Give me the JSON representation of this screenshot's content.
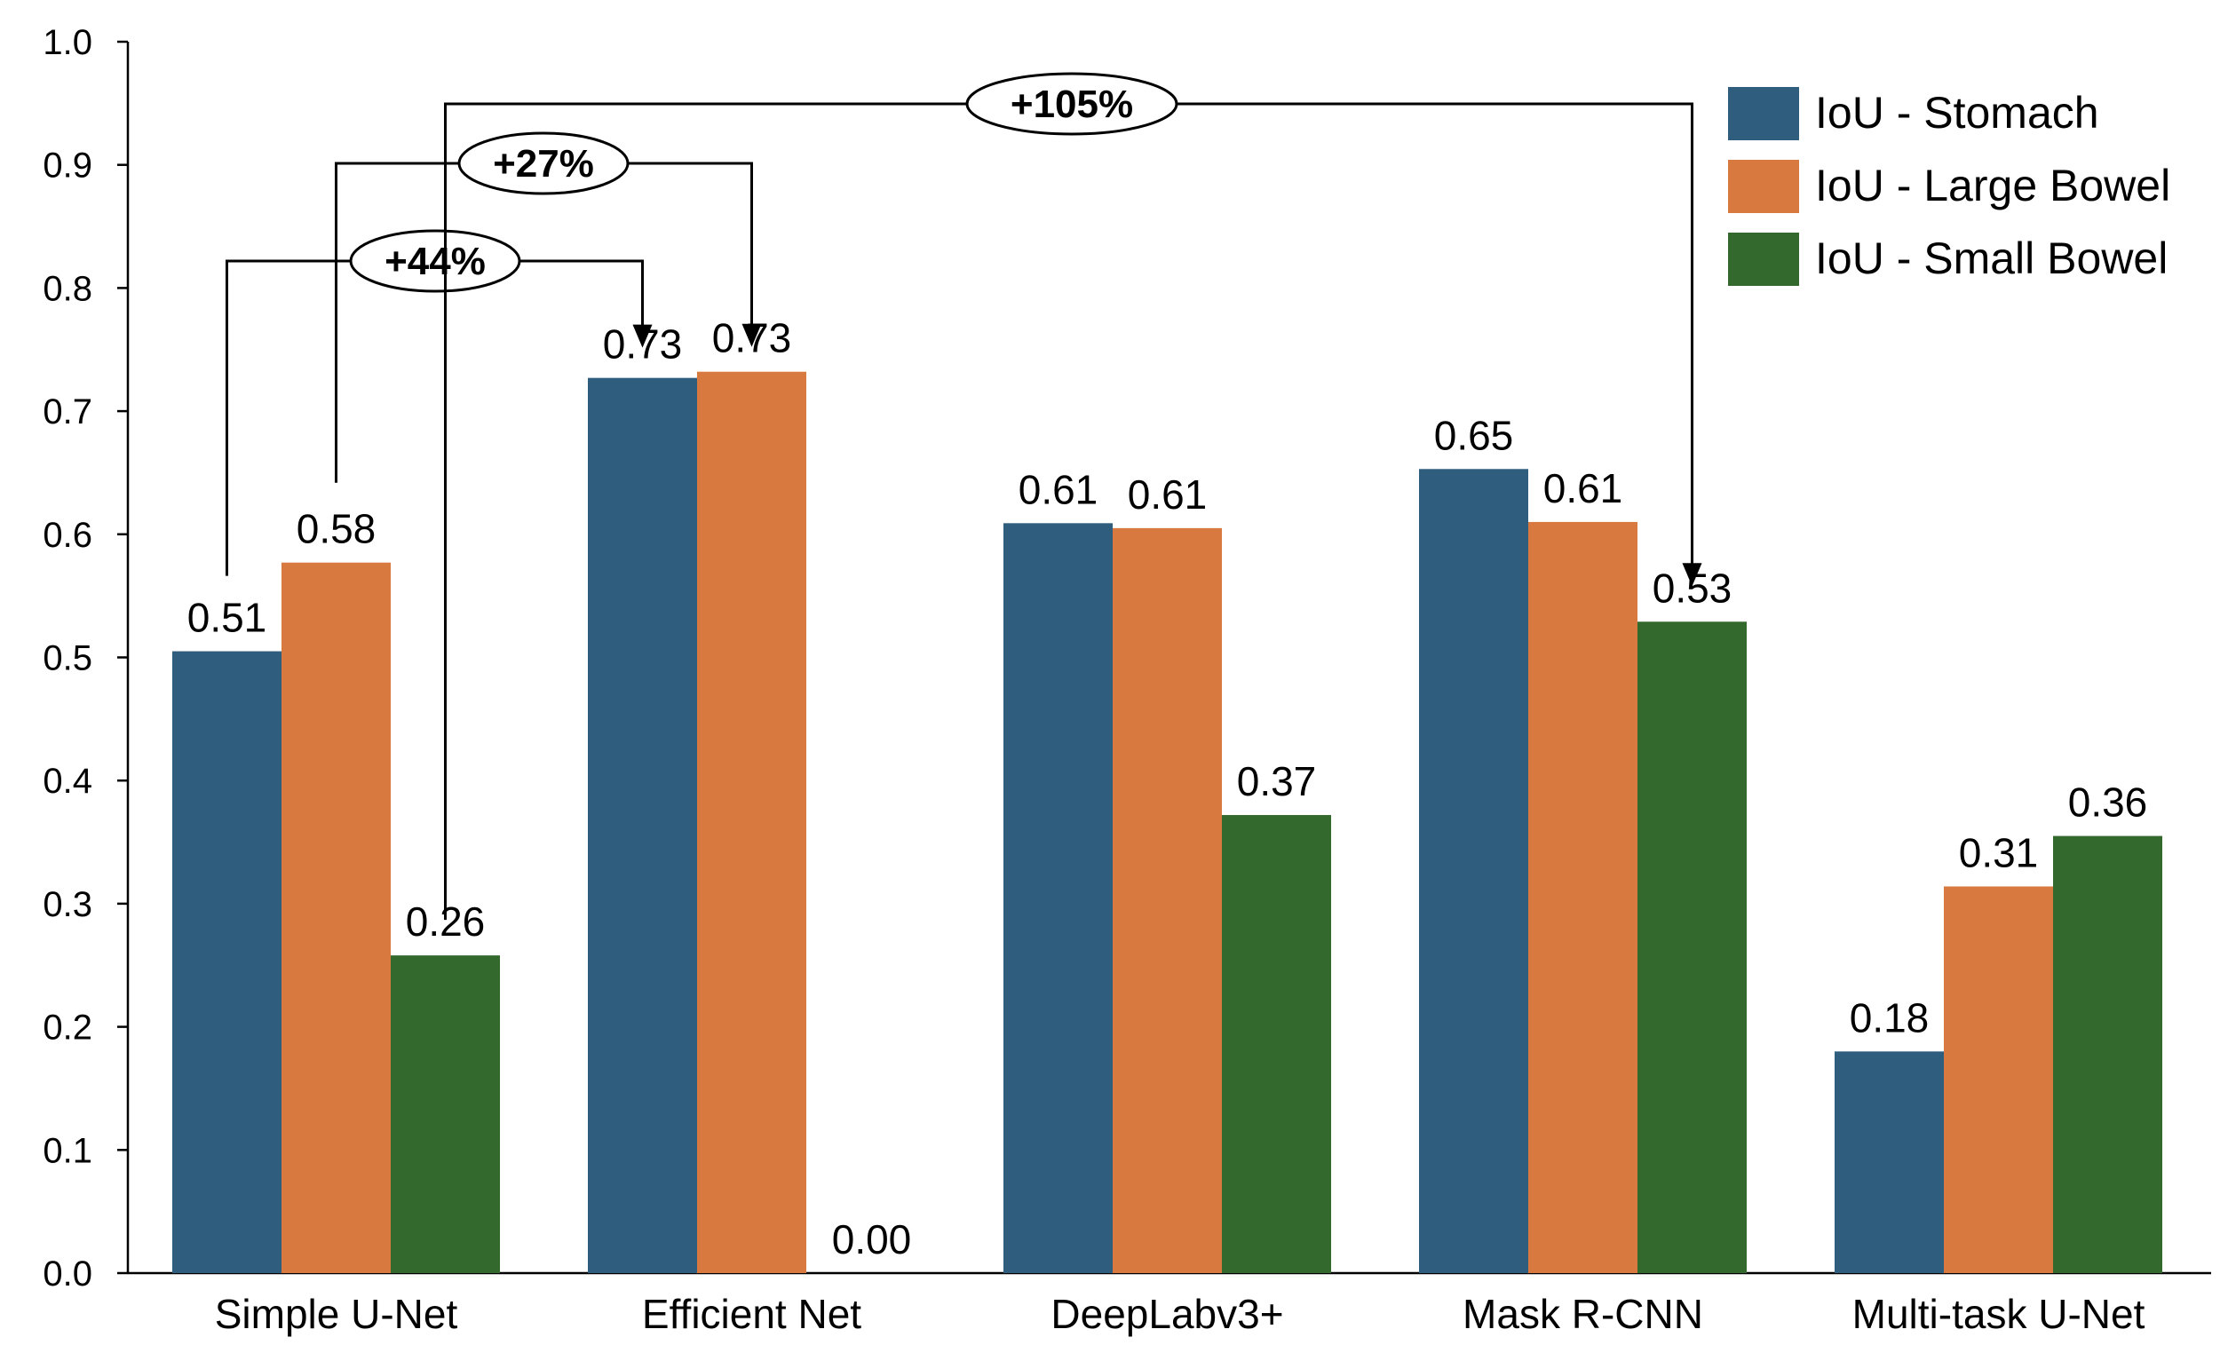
{
  "chart_data": {
    "type": "bar",
    "title": "",
    "xlabel": "",
    "ylabel": "",
    "ylim": [
      0,
      1.0
    ],
    "yticks": [
      "0.0",
      "0.1",
      "0.2",
      "0.3",
      "0.4",
      "0.5",
      "0.6",
      "0.7",
      "0.8",
      "0.9",
      "1.0"
    ],
    "grid": false,
    "legend_position": "top-right",
    "categories": [
      "Simple U-Net",
      "Efficient Net",
      "DeepLabv3+",
      "Mask R-CNN",
      "Multi-task U-Net"
    ],
    "series": [
      {
        "name": "IoU - Stomach",
        "color": "#2f5d7e",
        "values": [
          0.505,
          0.727,
          0.609,
          0.653,
          0.18
        ],
        "labels": [
          "0.51",
          "0.73",
          "0.61",
          "0.65",
          "0.18"
        ]
      },
      {
        "name": "IoU - Large Bowel",
        "color": "#d87a40",
        "values": [
          0.577,
          0.732,
          0.605,
          0.61,
          0.314
        ],
        "labels": [
          "0.58",
          "0.73",
          "0.61",
          "0.61",
          "0.31"
        ]
      },
      {
        "name": "IoU - Small Bowel",
        "color": "#33692d",
        "values": [
          0.258,
          0.0,
          0.372,
          0.529,
          0.355
        ],
        "labels": [
          "0.26",
          "0.00",
          "0.37",
          "0.53",
          "0.36"
        ]
      }
    ],
    "annotations": [
      {
        "text": "+44%",
        "from": {
          "category": "Simple U-Net",
          "series": "IoU - Stomach"
        },
        "to": {
          "category": "Efficient Net",
          "series": "IoU - Stomach"
        }
      },
      {
        "text": "+27%",
        "from": {
          "category": "Simple U-Net",
          "series": "IoU - Large Bowel"
        },
        "to": {
          "category": "Efficient Net",
          "series": "IoU - Large Bowel"
        }
      },
      {
        "text": "+105%",
        "from": {
          "category": "Simple U-Net",
          "series": "IoU - Small Bowel"
        },
        "to": {
          "category": "Mask R-CNN",
          "series": "IoU - Small Bowel"
        }
      }
    ]
  }
}
